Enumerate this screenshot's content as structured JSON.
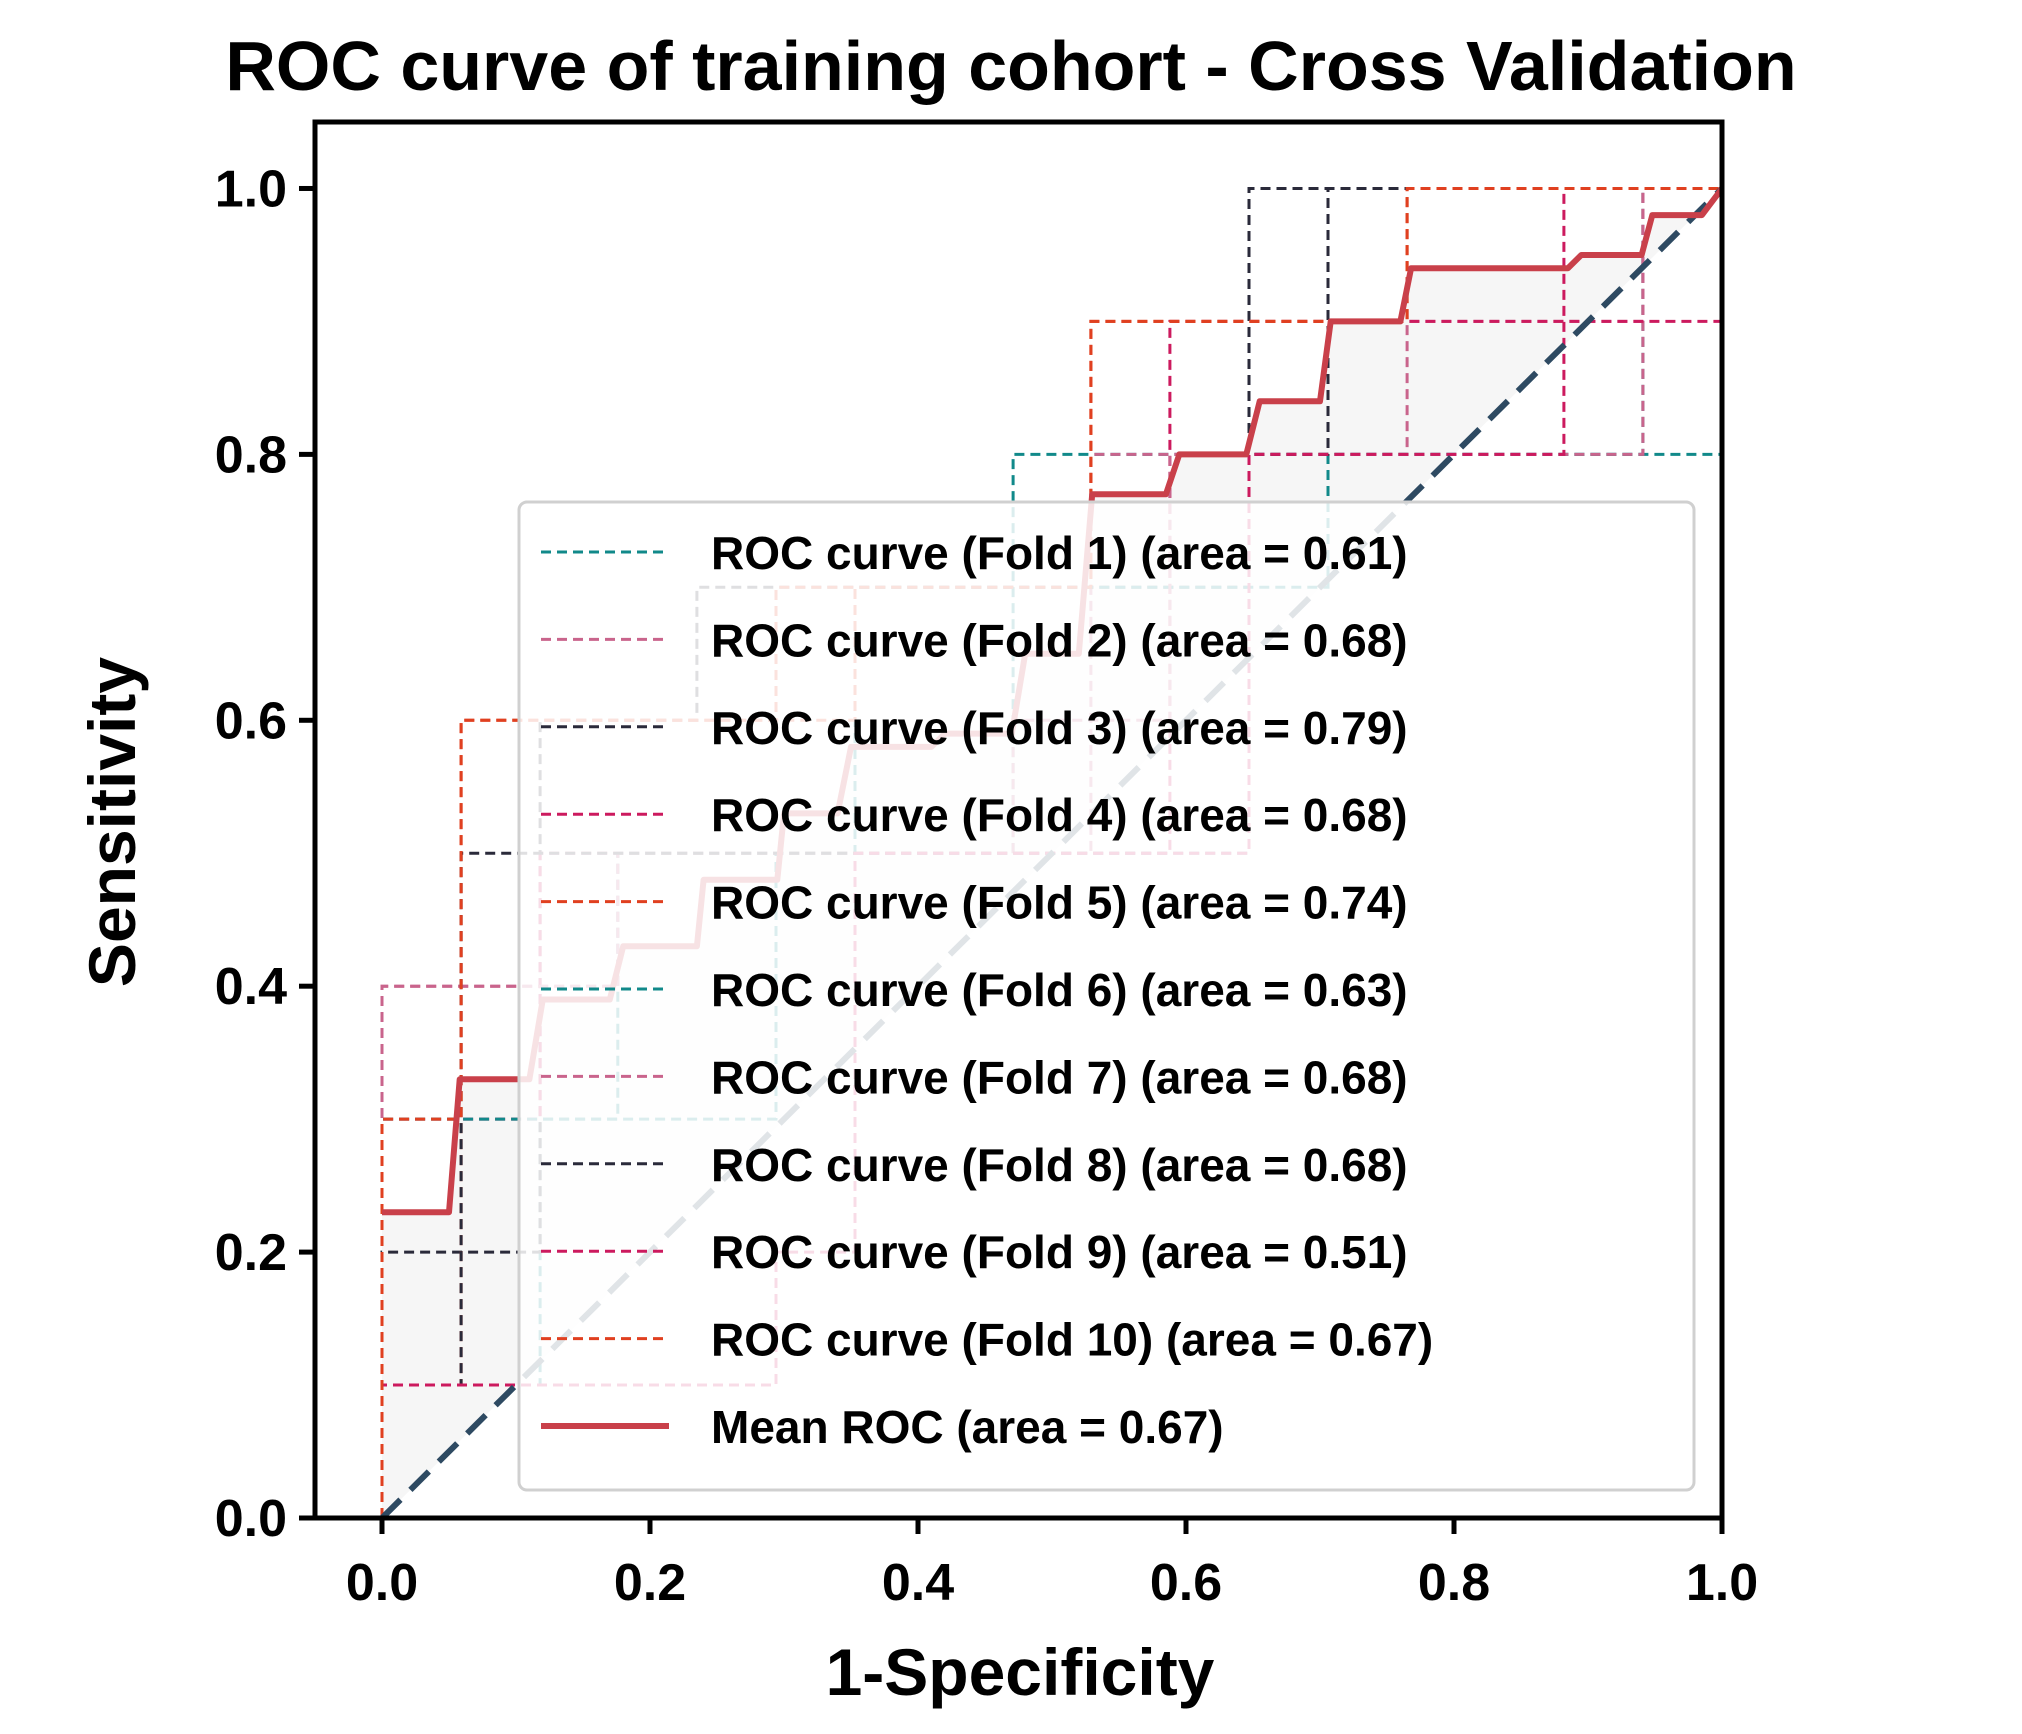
{
  "chart_data": {
    "type": "line",
    "title": "ROC curve of training cohort - Cross Validation",
    "xlabel": "1-Specificity",
    "ylabel": "Sensitivity",
    "xlim": [
      -0.05,
      1.0
    ],
    "ylim": [
      0.0,
      1.05
    ],
    "xticks": [
      "0.0",
      "0.2",
      "0.4",
      "0.6",
      "0.8",
      "1.0"
    ],
    "yticks": [
      "0.0",
      "0.2",
      "0.4",
      "0.6",
      "0.8",
      "1.0"
    ],
    "legend_position": "lower-right",
    "diagonal": {
      "x": [
        0,
        1
      ],
      "y": [
        0,
        1
      ],
      "color": "#2e4a62",
      "style": "dashed"
    },
    "series": [
      {
        "name": "ROC curve (Fold 1) (area = 0.61)",
        "color": "#11898a",
        "style": "dashed",
        "x": [
          0,
          0,
          0.118,
          0.118,
          0.294,
          0.294,
          0.471,
          0.471,
          0.941,
          0.941,
          1.0
        ],
        "y": [
          0,
          0.1,
          0.1,
          0.3,
          0.3,
          0.5,
          0.5,
          0.8,
          0.8,
          1.0,
          1.0
        ]
      },
      {
        "name": "ROC curve (Fold 2) (area = 0.68)",
        "color": "#c9648c",
        "style": "dashed",
        "x": [
          0,
          0,
          0.176,
          0.176,
          0.529,
          0.529,
          0.765,
          0.765,
          0.941,
          0.941,
          1.0
        ],
        "y": [
          0,
          0.4,
          0.4,
          0.5,
          0.5,
          0.8,
          0.8,
          0.9,
          0.9,
          1.0,
          1.0
        ]
      },
      {
        "name": "ROC curve (Fold 3) (area = 0.79)",
        "color": "#2a2a3a",
        "style": "dashed",
        "x": [
          0,
          0,
          0.118,
          0.118,
          0.235,
          0.235,
          0.647,
          0.647,
          1.0
        ],
        "y": [
          0,
          0.2,
          0.2,
          0.6,
          0.6,
          0.7,
          0.7,
          1.0,
          1.0
        ]
      },
      {
        "name": "ROC curve (Fold 4) (area = 0.68)",
        "color": "#cc1a5e",
        "style": "dashed",
        "x": [
          0,
          0,
          0.118,
          0.118,
          0.588,
          0.588,
          0.882,
          0.882,
          1.0
        ],
        "y": [
          0,
          0.3,
          0.3,
          0.5,
          0.5,
          0.9,
          0.9,
          1.0,
          1.0
        ]
      },
      {
        "name": "ROC curve (Fold 5) (area = 0.74)",
        "color": "#e04020",
        "style": "dashed",
        "x": [
          0,
          0,
          0.059,
          0.059,
          0.294,
          0.294,
          0.529,
          0.529,
          0.765,
          0.765,
          1.0
        ],
        "y": [
          0,
          0.1,
          0.1,
          0.6,
          0.6,
          0.7,
          0.7,
          0.9,
          0.9,
          1.0,
          1.0
        ]
      },
      {
        "name": "ROC curve (Fold 6) (area = 0.63)",
        "color": "#11898a",
        "style": "dashed",
        "x": [
          0,
          0,
          0.176,
          0.176,
          0.353,
          0.353,
          0.706,
          0.706,
          1.0
        ],
        "y": [
          0,
          0.3,
          0.3,
          0.5,
          0.5,
          0.7,
          0.7,
          0.8,
          0.8
        ]
      },
      {
        "name": "ROC curve (Fold 7) (area = 0.68)",
        "color": "#c9648c",
        "style": "dashed",
        "x": [
          0,
          0,
          0.176,
          0.176,
          0.471,
          0.471,
          0.588,
          0.588,
          0.941,
          0.941,
          1.0
        ],
        "y": [
          0,
          0.4,
          0.4,
          0.5,
          0.5,
          0.6,
          0.6,
          0.8,
          0.8,
          1.0,
          1.0
        ]
      },
      {
        "name": "ROC curve (Fold 8) (area = 0.68)",
        "color": "#2a2a3a",
        "style": "dashed",
        "x": [
          0,
          0,
          0.059,
          0.059,
          0.647,
          0.647,
          0.706,
          0.706,
          1.0
        ],
        "y": [
          0,
          0.1,
          0.1,
          0.5,
          0.5,
          0.8,
          0.8,
          1.0,
          1.0
        ]
      },
      {
        "name": "ROC curve (Fold 9) (area = 0.51)",
        "color": "#cc1a5e",
        "style": "dashed",
        "x": [
          0,
          0,
          0.294,
          0.294,
          0.353,
          0.353,
          0.647,
          0.647,
          0.882,
          0.882,
          1.0
        ],
        "y": [
          0,
          0.1,
          0.1,
          0.2,
          0.2,
          0.5,
          0.5,
          0.8,
          0.8,
          0.9,
          0.9
        ]
      },
      {
        "name": "ROC curve (Fold 10) (area = 0.67)",
        "color": "#e04020",
        "style": "dashed",
        "x": [
          0,
          0,
          0.059,
          0.059,
          0.353,
          0.353,
          0.529,
          0.529,
          0.765,
          0.765,
          1.0
        ],
        "y": [
          0,
          0.3,
          0.3,
          0.6,
          0.6,
          0.7,
          0.7,
          0.9,
          0.9,
          1.0,
          1.0
        ]
      },
      {
        "name": "Mean ROC (area = 0.67)",
        "color": "#c9404a",
        "style": "solid",
        "x": [
          0,
          0.05,
          0.058,
          0.07,
          0.11,
          0.12,
          0.17,
          0.18,
          0.235,
          0.24,
          0.295,
          0.3,
          0.34,
          0.35,
          0.41,
          0.42,
          0.47,
          0.48,
          0.52,
          0.53,
          0.585,
          0.595,
          0.645,
          0.655,
          0.7,
          0.708,
          0.76,
          0.768,
          0.885,
          0.895,
          0.94,
          0.948,
          0.985,
          1.0
        ],
        "y": [
          0.23,
          0.23,
          0.33,
          0.33,
          0.33,
          0.39,
          0.39,
          0.43,
          0.43,
          0.48,
          0.48,
          0.53,
          0.53,
          0.58,
          0.58,
          0.59,
          0.59,
          0.65,
          0.65,
          0.77,
          0.77,
          0.8,
          0.8,
          0.84,
          0.84,
          0.9,
          0.9,
          0.94,
          0.94,
          0.95,
          0.95,
          0.98,
          0.98,
          1.0
        ]
      }
    ],
    "mean_band": {
      "x_low": [
        0,
        1
      ],
      "y_low": [
        0,
        1
      ]
    }
  }
}
